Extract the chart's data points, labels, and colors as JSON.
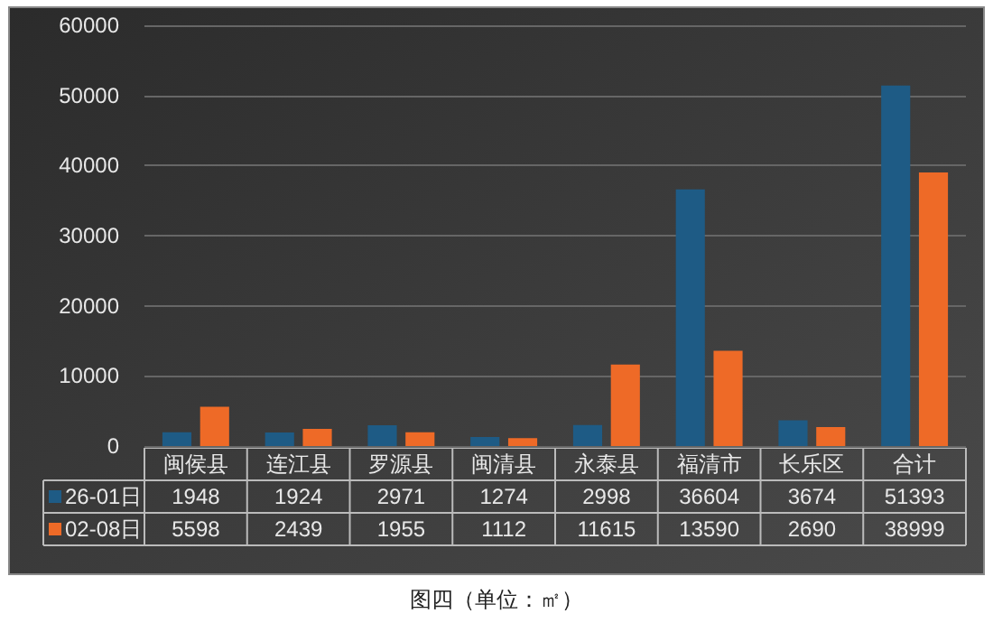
{
  "chart_data": {
    "type": "bar",
    "categories": [
      "闽侯县",
      "连江县",
      "罗源县",
      "闽清县",
      "永泰县",
      "福清市",
      "长乐区",
      "合计"
    ],
    "series": [
      {
        "name": "26-01日",
        "color": "#1e5b85",
        "values": [
          1948,
          1924,
          2971,
          1274,
          2998,
          36604,
          3674,
          51393
        ]
      },
      {
        "name": "02-08日",
        "color": "#ee6a27",
        "values": [
          5598,
          2439,
          1955,
          1112,
          11615,
          13590,
          2690,
          38999
        ]
      }
    ],
    "ylim": [
      0,
      60000
    ],
    "yticks": [
      0,
      10000,
      20000,
      30000,
      40000,
      50000,
      60000
    ],
    "grid": "y",
    "legend": "bottom left",
    "data_labels": true,
    "annotations": [
      "图四（单位：㎡）"
    ]
  }
}
